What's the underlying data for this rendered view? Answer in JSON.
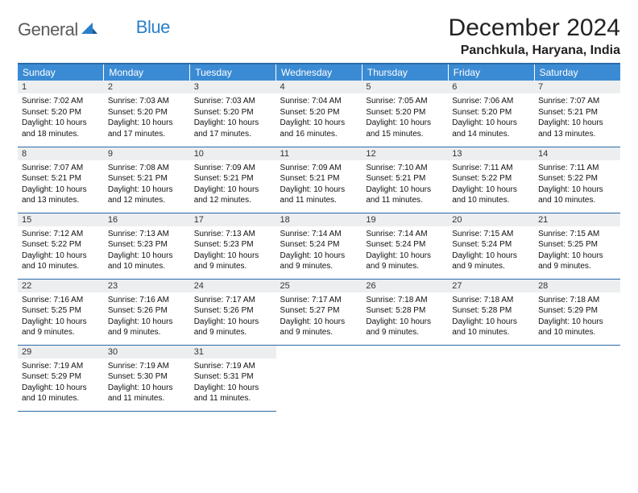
{
  "logo": {
    "text1": "General",
    "text2": "Blue"
  },
  "title": "December 2024",
  "location": "Panchkula, Haryana, India",
  "colors": {
    "header_bg": "#3b8bd4",
    "border": "#2a6aa8",
    "daynum_bg": "#eceef0",
    "logo_gray": "#5a5a5a",
    "logo_blue": "#2a7fc9"
  },
  "weekdays": [
    "Sunday",
    "Monday",
    "Tuesday",
    "Wednesday",
    "Thursday",
    "Friday",
    "Saturday"
  ],
  "days": [
    {
      "n": "1",
      "sr": "7:02 AM",
      "ss": "5:20 PM",
      "dl": "10 hours and 18 minutes."
    },
    {
      "n": "2",
      "sr": "7:03 AM",
      "ss": "5:20 PM",
      "dl": "10 hours and 17 minutes."
    },
    {
      "n": "3",
      "sr": "7:03 AM",
      "ss": "5:20 PM",
      "dl": "10 hours and 17 minutes."
    },
    {
      "n": "4",
      "sr": "7:04 AM",
      "ss": "5:20 PM",
      "dl": "10 hours and 16 minutes."
    },
    {
      "n": "5",
      "sr": "7:05 AM",
      "ss": "5:20 PM",
      "dl": "10 hours and 15 minutes."
    },
    {
      "n": "6",
      "sr": "7:06 AM",
      "ss": "5:20 PM",
      "dl": "10 hours and 14 minutes."
    },
    {
      "n": "7",
      "sr": "7:07 AM",
      "ss": "5:21 PM",
      "dl": "10 hours and 13 minutes."
    },
    {
      "n": "8",
      "sr": "7:07 AM",
      "ss": "5:21 PM",
      "dl": "10 hours and 13 minutes."
    },
    {
      "n": "9",
      "sr": "7:08 AM",
      "ss": "5:21 PM",
      "dl": "10 hours and 12 minutes."
    },
    {
      "n": "10",
      "sr": "7:09 AM",
      "ss": "5:21 PM",
      "dl": "10 hours and 12 minutes."
    },
    {
      "n": "11",
      "sr": "7:09 AM",
      "ss": "5:21 PM",
      "dl": "10 hours and 11 minutes."
    },
    {
      "n": "12",
      "sr": "7:10 AM",
      "ss": "5:21 PM",
      "dl": "10 hours and 11 minutes."
    },
    {
      "n": "13",
      "sr": "7:11 AM",
      "ss": "5:22 PM",
      "dl": "10 hours and 10 minutes."
    },
    {
      "n": "14",
      "sr": "7:11 AM",
      "ss": "5:22 PM",
      "dl": "10 hours and 10 minutes."
    },
    {
      "n": "15",
      "sr": "7:12 AM",
      "ss": "5:22 PM",
      "dl": "10 hours and 10 minutes."
    },
    {
      "n": "16",
      "sr": "7:13 AM",
      "ss": "5:23 PM",
      "dl": "10 hours and 10 minutes."
    },
    {
      "n": "17",
      "sr": "7:13 AM",
      "ss": "5:23 PM",
      "dl": "10 hours and 9 minutes."
    },
    {
      "n": "18",
      "sr": "7:14 AM",
      "ss": "5:24 PM",
      "dl": "10 hours and 9 minutes."
    },
    {
      "n": "19",
      "sr": "7:14 AM",
      "ss": "5:24 PM",
      "dl": "10 hours and 9 minutes."
    },
    {
      "n": "20",
      "sr": "7:15 AM",
      "ss": "5:24 PM",
      "dl": "10 hours and 9 minutes."
    },
    {
      "n": "21",
      "sr": "7:15 AM",
      "ss": "5:25 PM",
      "dl": "10 hours and 9 minutes."
    },
    {
      "n": "22",
      "sr": "7:16 AM",
      "ss": "5:25 PM",
      "dl": "10 hours and 9 minutes."
    },
    {
      "n": "23",
      "sr": "7:16 AM",
      "ss": "5:26 PM",
      "dl": "10 hours and 9 minutes."
    },
    {
      "n": "24",
      "sr": "7:17 AM",
      "ss": "5:26 PM",
      "dl": "10 hours and 9 minutes."
    },
    {
      "n": "25",
      "sr": "7:17 AM",
      "ss": "5:27 PM",
      "dl": "10 hours and 9 minutes."
    },
    {
      "n": "26",
      "sr": "7:18 AM",
      "ss": "5:28 PM",
      "dl": "10 hours and 9 minutes."
    },
    {
      "n": "27",
      "sr": "7:18 AM",
      "ss": "5:28 PM",
      "dl": "10 hours and 10 minutes."
    },
    {
      "n": "28",
      "sr": "7:18 AM",
      "ss": "5:29 PM",
      "dl": "10 hours and 10 minutes."
    },
    {
      "n": "29",
      "sr": "7:19 AM",
      "ss": "5:29 PM",
      "dl": "10 hours and 10 minutes."
    },
    {
      "n": "30",
      "sr": "7:19 AM",
      "ss": "5:30 PM",
      "dl": "10 hours and 11 minutes."
    },
    {
      "n": "31",
      "sr": "7:19 AM",
      "ss": "5:31 PM",
      "dl": "10 hours and 11 minutes."
    }
  ],
  "labels": {
    "sunrise": "Sunrise: ",
    "sunset": "Sunset: ",
    "daylight": "Daylight: "
  }
}
